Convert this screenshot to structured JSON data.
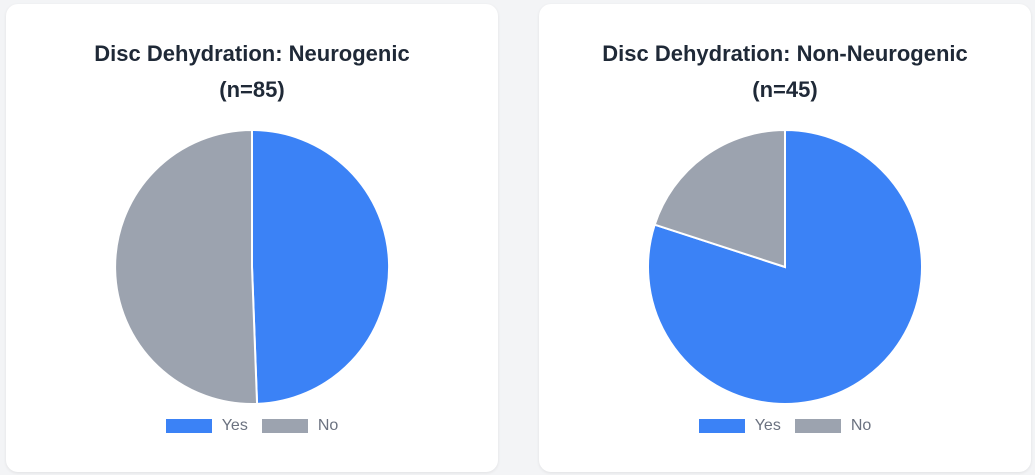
{
  "chart_data": [
    {
      "type": "pie",
      "title_line1": "Disc Dehydration: Neurogenic",
      "title_line2": "(n=85)",
      "categories": [
        "Yes",
        "No"
      ],
      "values": [
        42,
        43
      ],
      "colors": [
        "#3b82f6",
        "#9ca3af"
      ],
      "legend": "bottom"
    },
    {
      "type": "pie",
      "title_line1": "Disc Dehydration: Non-Neurogenic",
      "title_line2": "(n=45)",
      "categories": [
        "Yes",
        "No"
      ],
      "values": [
        36,
        9
      ],
      "colors": [
        "#3b82f6",
        "#9ca3af"
      ],
      "legend": "bottom"
    }
  ]
}
